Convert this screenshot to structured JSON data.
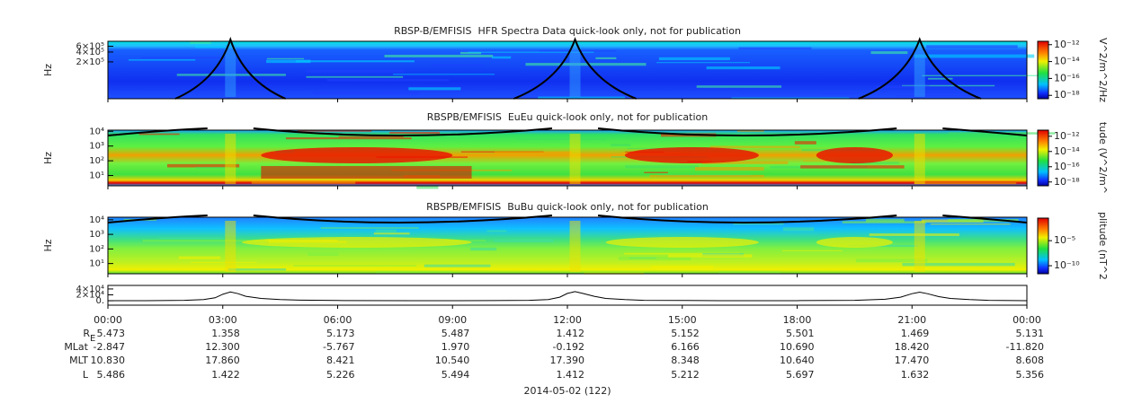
{
  "chart_data": [
    {
      "type": "spectrogram",
      "title": "RBSP-B/EMFISIS  HFR Spectra Data quick-look only, not for publication",
      "ylabel": "Hz",
      "log_y": true,
      "ylim": [
        15000,
        850000
      ],
      "yticks": [
        {
          "value": 200000,
          "label": "2×10⁵"
        },
        {
          "value": 400000,
          "label": "4×10⁵"
        },
        {
          "value": 600000,
          "label": "6×10⁵"
        }
      ],
      "colorbar": {
        "label": "V^2/m^2/Hz",
        "log": true,
        "lim": [
          3.98e-19,
          2.51e-12
        ],
        "ticks": [
          {
            "value": 1e-12,
            "label": "10⁻¹²"
          },
          {
            "value": 1e-14,
            "label": "10⁻¹⁴"
          },
          {
            "value": 1e-16,
            "label": "10⁻¹⁶"
          },
          {
            "value": 1e-18,
            "label": "10⁻¹⁸"
          }
        ]
      }
    },
    {
      "type": "spectrogram",
      "title": "RBSPB/EMFISIS  EuEu quick-look only, not for publication",
      "ylabel": "Hz",
      "log_y": true,
      "ylim": [
        2,
        12000
      ],
      "yticks": [
        {
          "value": 10,
          "label": "10¹"
        },
        {
          "value": 100,
          "label": "10²"
        },
        {
          "value": 1000,
          "label": "10³"
        },
        {
          "value": 10000,
          "label": "10⁴"
        }
      ],
      "colorbar": {
        "label": "tude (V^2/m^",
        "log": true,
        "lim": [
          3.16e-19,
          6.3e-12
        ],
        "ticks": [
          {
            "value": 1e-12,
            "label": "10⁻¹²"
          },
          {
            "value": 1e-14,
            "label": "10⁻¹⁴"
          },
          {
            "value": 1e-16,
            "label": "10⁻¹⁶"
          },
          {
            "value": 1e-18,
            "label": "10⁻¹⁸"
          }
        ]
      }
    },
    {
      "type": "spectrogram",
      "title": "RBSPB/EMFISIS  BuBu quick-look only, not for publication",
      "ylabel": "Hz",
      "log_y": true,
      "ylim": [
        2,
        15000
      ],
      "yticks": [
        {
          "value": 10,
          "label": "10¹"
        },
        {
          "value": 100,
          "label": "10²"
        },
        {
          "value": 1000,
          "label": "10³"
        },
        {
          "value": 10000,
          "label": "10⁴"
        }
      ],
      "colorbar": {
        "label": "plitude (nT^2",
        "log": true,
        "lim": [
          2.5e-12,
          0.316
        ],
        "ticks": [
          {
            "value": 1e-05,
            "label": "10⁻⁵"
          },
          {
            "value": 1e-10,
            "label": "10⁻¹⁰"
          }
        ]
      }
    },
    {
      "type": "line",
      "color": "#000000",
      "ylim": [
        -15000,
        52000
      ],
      "yticks": [
        {
          "value": 0,
          "label": "0."
        },
        {
          "value": 20000,
          "label": "2×10⁴"
        },
        {
          "value": 40000,
          "label": "4×10⁴"
        }
      ],
      "x": [
        0,
        1,
        2,
        2.5,
        2.8,
        3.0,
        3.2,
        3.4,
        3.6,
        4.0,
        4.5,
        5,
        6,
        8,
        10,
        11,
        11.5,
        11.8,
        12.0,
        12.2,
        12.4,
        12.7,
        13,
        13.5,
        14,
        16,
        18,
        19.5,
        20.3,
        20.7,
        21.0,
        21.2,
        21.4,
        21.7,
        22,
        22.5,
        23,
        24
      ],
      "values": [
        300,
        400,
        1500,
        4000,
        10000,
        22000,
        30000,
        24000,
        15000,
        8000,
        4000,
        2000,
        800,
        300,
        500,
        1500,
        4000,
        12000,
        25000,
        31000,
        25000,
        15000,
        8000,
        4000,
        1500,
        400,
        400,
        1500,
        5000,
        12000,
        24000,
        29000,
        24000,
        14000,
        8000,
        4000,
        1500,
        400
      ]
    }
  ],
  "x_axis": {
    "xlim": [
      0,
      24
    ],
    "xticks": [
      {
        "value": 0,
        "label": "00:00"
      },
      {
        "value": 3,
        "label": "03:00"
      },
      {
        "value": 6,
        "label": "06:00"
      },
      {
        "value": 9,
        "label": "09:00"
      },
      {
        "value": 12,
        "label": "12:00"
      },
      {
        "value": 15,
        "label": "15:00"
      },
      {
        "value": 18,
        "label": "18:00"
      },
      {
        "value": 21,
        "label": "21:00"
      },
      {
        "value": 24,
        "label": "00:00"
      }
    ]
  },
  "ephemeris": {
    "rows": [
      {
        "label": "R",
        "label_sub": "E",
        "values": [
          "5.473",
          "1.358",
          "5.173",
          "5.487",
          "1.412",
          "5.152",
          "5.501",
          "1.469",
          "5.131"
        ]
      },
      {
        "label": "MLat",
        "values": [
          "-2.847",
          "12.300",
          "-5.767",
          "1.970",
          "-0.192",
          "6.166",
          "10.690",
          "18.420",
          "-11.820"
        ]
      },
      {
        "label": "MLT",
        "values": [
          "10.830",
          "17.860",
          "8.421",
          "10.540",
          "17.390",
          "8.348",
          "10.640",
          "17.470",
          "8.608"
        ]
      },
      {
        "label": "L",
        "values": [
          "5.486",
          "1.422",
          "5.226",
          "5.494",
          "1.412",
          "5.212",
          "5.697",
          "1.632",
          "5.356"
        ]
      }
    ],
    "date": "2014-05-02 (122)"
  }
}
